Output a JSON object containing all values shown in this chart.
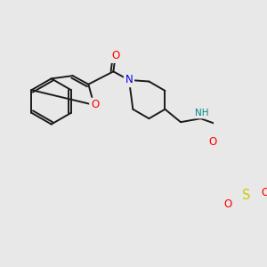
{
  "background_color": "#e8e8e8",
  "bond_color": "#1a1a1a",
  "bond_width": 1.4,
  "atom_colors": {
    "O": "#ff0000",
    "N": "#0000ee",
    "S": "#cccc00",
    "H": "#008888",
    "C": "#1a1a1a"
  },
  "font_size_atom": 8.5,
  "font_size_nh": 7.5
}
